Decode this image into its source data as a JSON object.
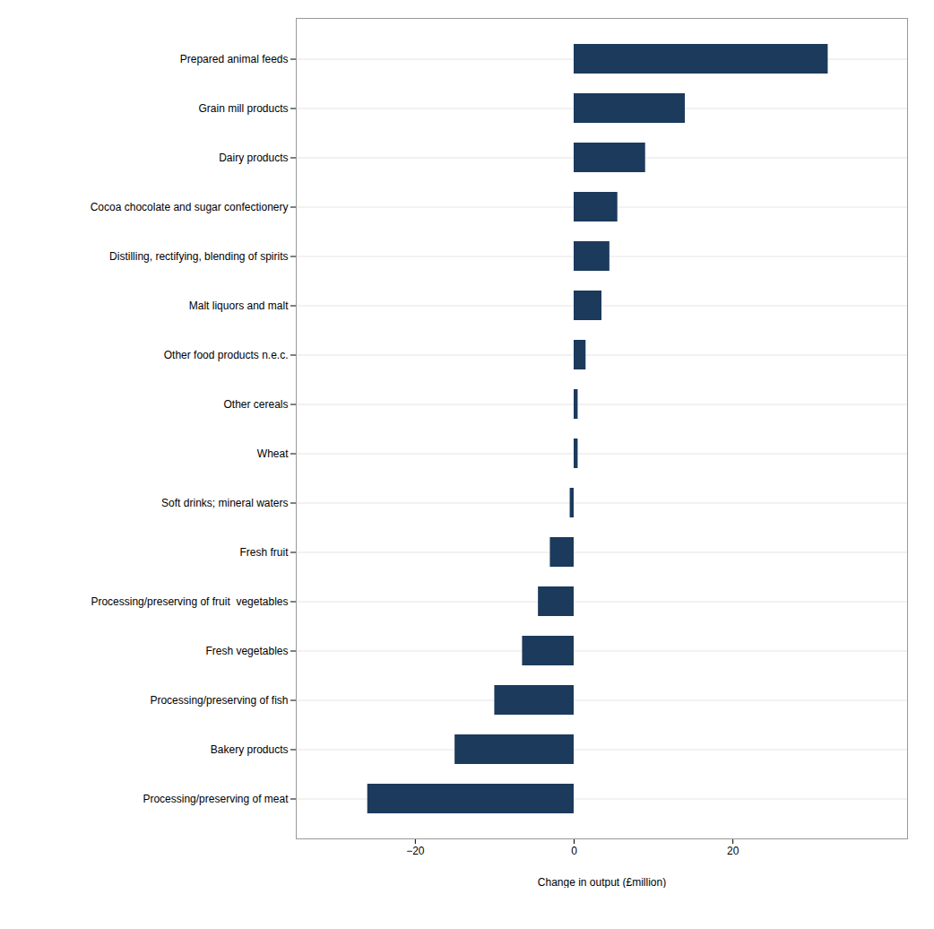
{
  "chart_data": {
    "type": "bar",
    "orientation": "horizontal",
    "categories": [
      "Prepared animal feeds",
      "Grain mill products",
      "Dairy products",
      "Cocoa chocolate and sugar confectionery",
      "Distilling, rectifying, blending of spirits",
      "Malt liquors and malt",
      "Other food products n.e.c.",
      "Other cereals",
      "Wheat",
      "Soft drinks; mineral waters",
      "Fresh fruit",
      "Processing/preserving of fruit  vegetables",
      "Fresh vegetables",
      "Processing/preserving of fish",
      "Bakery products",
      "Processing/preserving of meat"
    ],
    "values": [
      32.0,
      14.0,
      9.0,
      5.5,
      4.5,
      3.5,
      1.5,
      0.5,
      0.5,
      -0.5,
      -3.0,
      -4.5,
      -6.5,
      -10.0,
      -15.0,
      -26.0
    ],
    "color": "#1b3a5c",
    "xlabel": "Change in output (£million)",
    "xlim": [
      -35,
      42
    ],
    "xticks": [
      -20,
      0,
      20
    ],
    "grid": true
  }
}
